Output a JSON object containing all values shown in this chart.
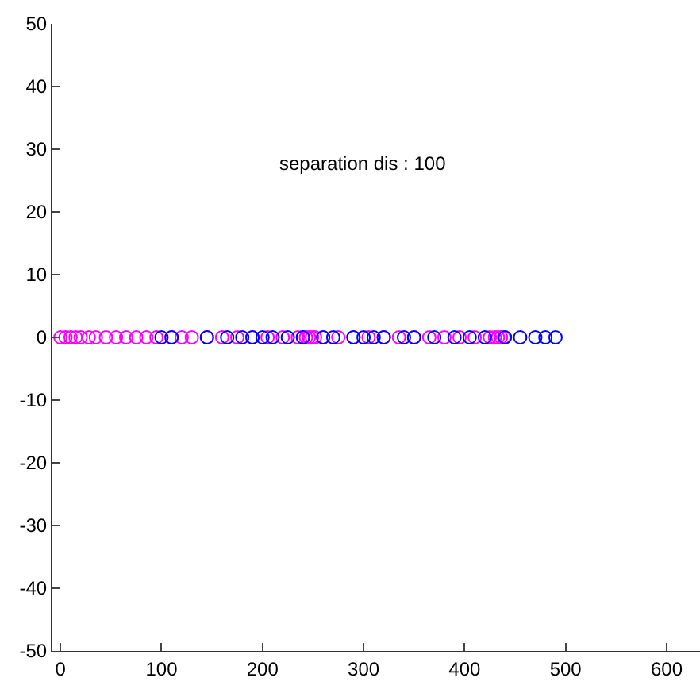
{
  "chart_data": {
    "type": "scatter",
    "marker": "circle",
    "annotations": [
      "separation dis : 100"
    ],
    "xlim": [
      -8,
      633
    ],
    "xticks": [
      0,
      100,
      200,
      300,
      400,
      500,
      600
    ],
    "ylim": [
      -50,
      50
    ],
    "yticks": [
      -50,
      -40,
      -30,
      -20,
      -10,
      0,
      10,
      20,
      30,
      40,
      50
    ],
    "series": [
      {
        "color": "#ff00ff",
        "x": [
          0,
          5,
          10,
          15,
          20,
          28,
          35,
          45,
          55,
          65,
          75,
          85,
          95,
          110,
          120,
          130,
          145,
          160,
          175,
          190,
          205,
          220,
          235,
          240,
          243,
          246,
          249,
          252,
          260,
          275,
          290,
          305,
          320,
          335,
          350,
          365,
          380,
          395,
          410,
          425,
          430,
          433,
          436,
          439
        ],
        "values": [
          0,
          0,
          0,
          0,
          0,
          0,
          0,
          0,
          0,
          0,
          0,
          0,
          0,
          0,
          0,
          0,
          0,
          0,
          0,
          0,
          0,
          0,
          0,
          0,
          0,
          0,
          0,
          0,
          0,
          0,
          0,
          0,
          0,
          0,
          0,
          0,
          0,
          0,
          0,
          0,
          0,
          0,
          0,
          0
        ]
      },
      {
        "color": "#0000ff",
        "x": [
          100,
          110,
          145,
          165,
          180,
          190,
          200,
          210,
          225,
          240,
          260,
          270,
          290,
          300,
          310,
          320,
          340,
          350,
          370,
          390,
          405,
          420,
          440,
          455,
          470,
          480,
          490
        ],
        "values": [
          0,
          0,
          0,
          0,
          0,
          0,
          0,
          0,
          0,
          0,
          0,
          0,
          0,
          0,
          0,
          0,
          0,
          0,
          0,
          0,
          0,
          0,
          0,
          0,
          0,
          0,
          0
        ]
      }
    ]
  }
}
